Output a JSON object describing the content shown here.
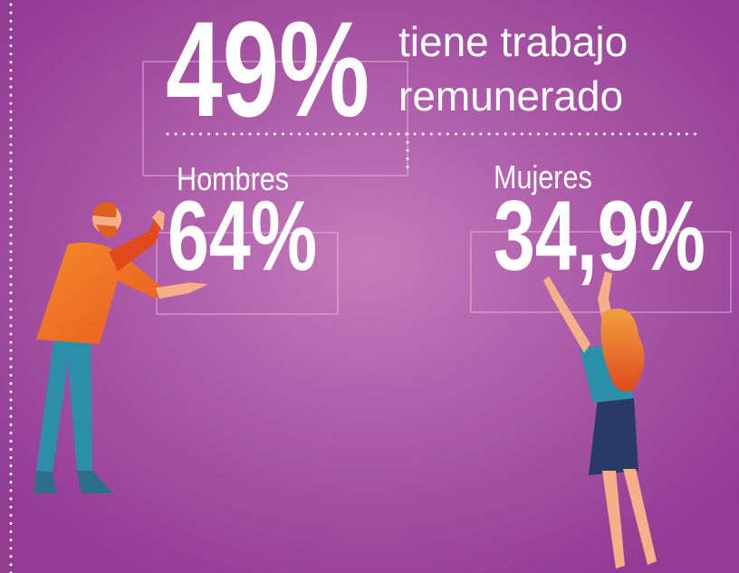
{
  "headline": {
    "value": "49%",
    "line1": "tiene trabajo",
    "line2": "remunerado"
  },
  "men": {
    "label": "Hombres",
    "value": "64%"
  },
  "women": {
    "label": "Mujeres",
    "value": "34,9%"
  }
}
